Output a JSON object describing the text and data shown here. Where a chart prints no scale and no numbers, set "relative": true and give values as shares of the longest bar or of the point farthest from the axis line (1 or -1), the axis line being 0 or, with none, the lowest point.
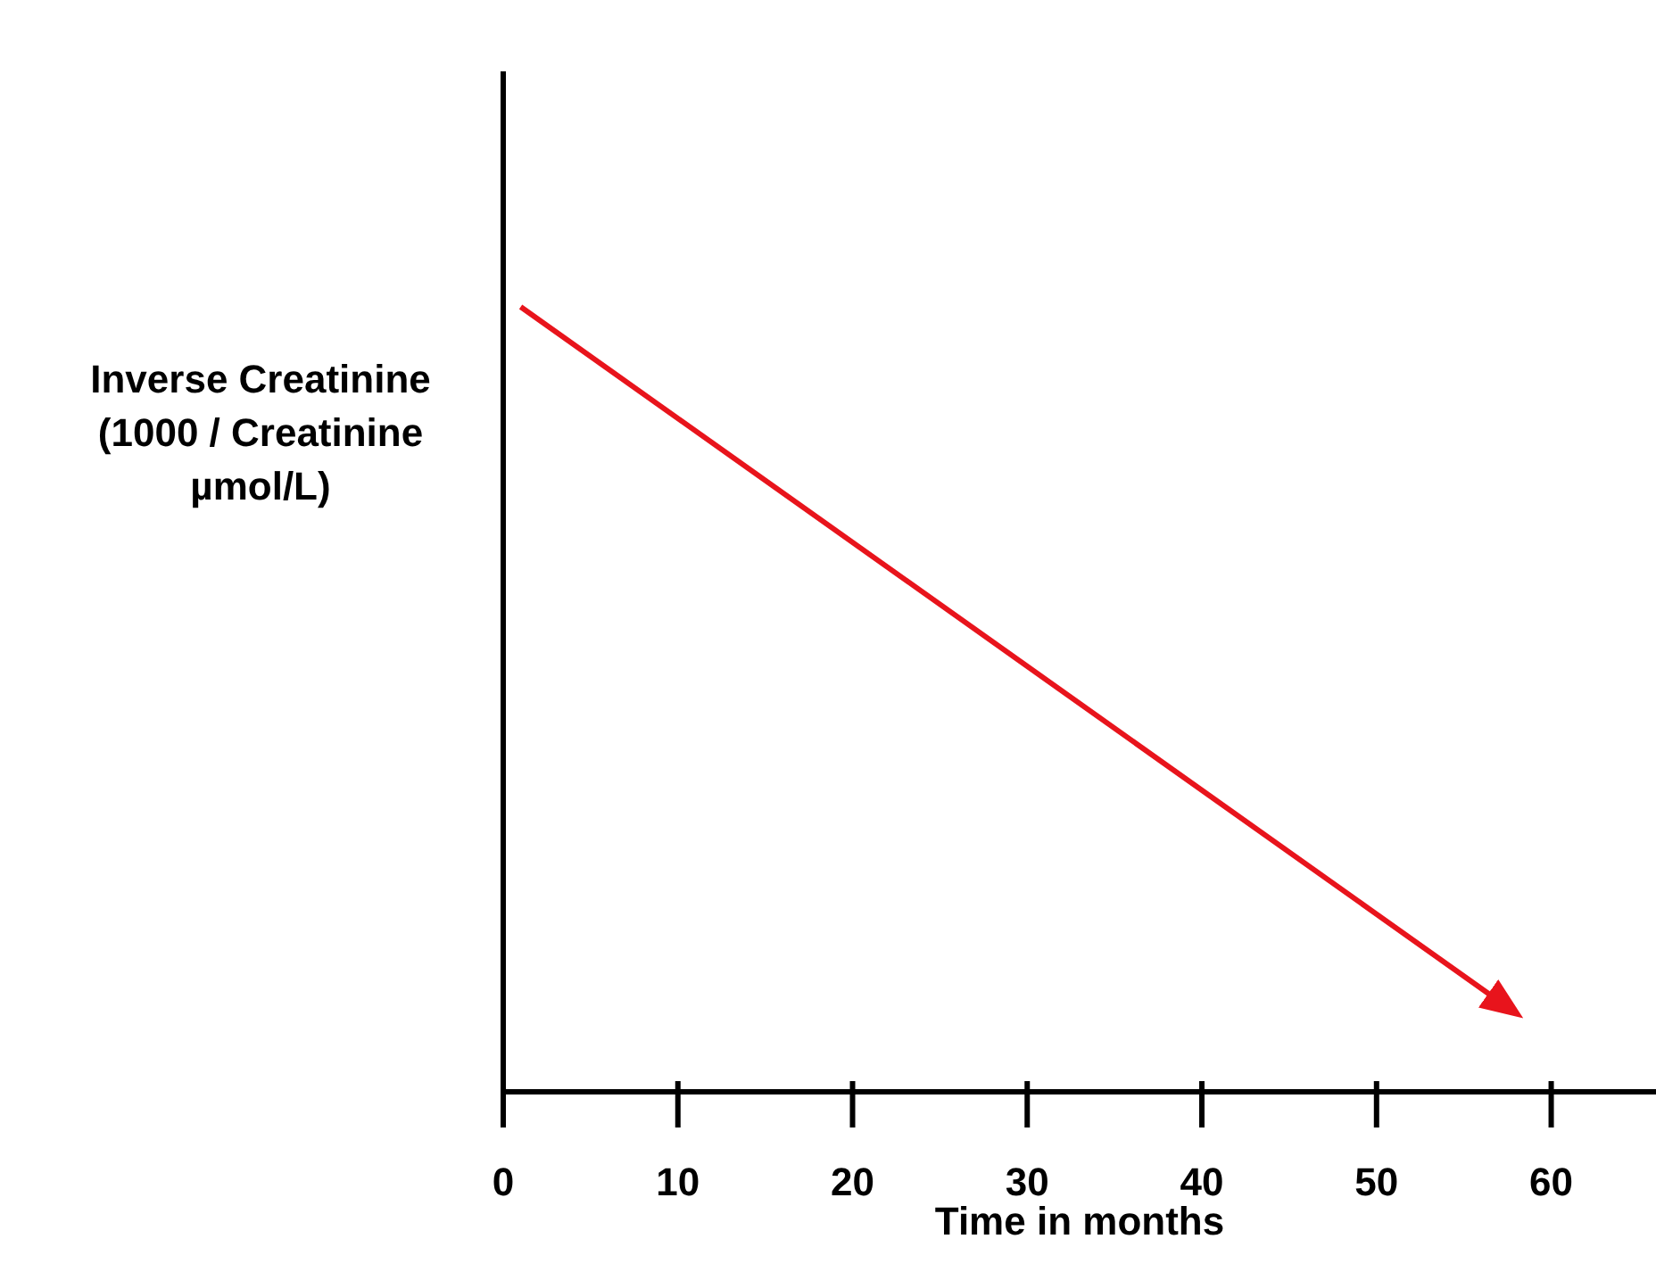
{
  "chart_data": {
    "type": "line",
    "relative": true,
    "xlabel": "Time in months",
    "ylabel": "Inverse Creatinine (1000 / Creatinine µmol/L)",
    "x": [
      1,
      58
    ],
    "xlim": [
      0,
      66
    ],
    "xticks": [
      0,
      10,
      20,
      30,
      40,
      50,
      60
    ],
    "series": [
      {
        "color": "#e8141c",
        "values": [
          1,
          0.1
        ]
      }
    ]
  }
}
